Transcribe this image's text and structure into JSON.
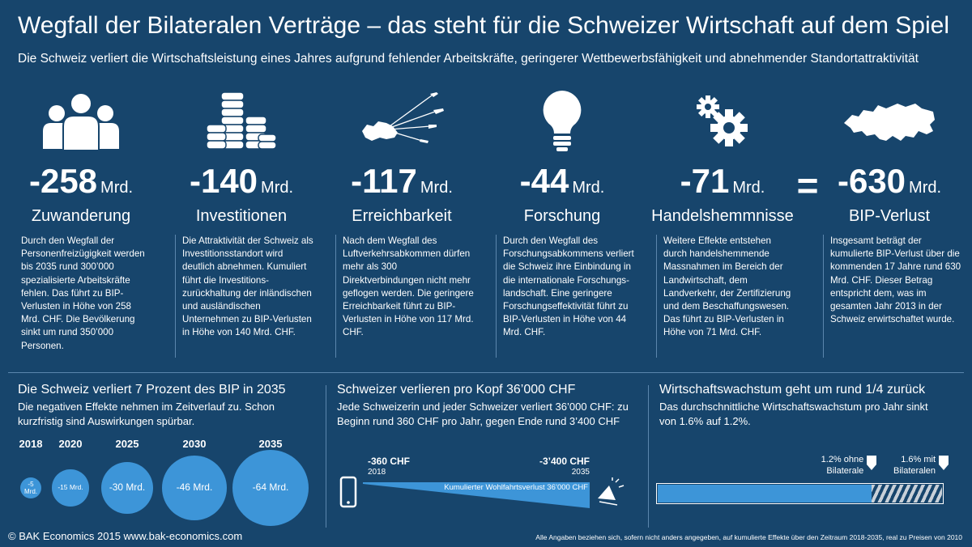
{
  "header": {
    "title": "Wegfall der Bilateralen Verträge – das steht für die Schweizer Wirtschaft auf dem Spiel",
    "subtitle": "Die Schweiz verliert die Wirtschaftsleistung eines Jahres aufgrund fehlender Arbeitskräfte, geringerer Wettbewerbsfähigkeit und abnehmender Standortattraktivität"
  },
  "columns": [
    {
      "icon": "people-icon",
      "value": "-258",
      "unit": "Mrd.",
      "label": "Zuwanderung",
      "text": "Durch den Wegfall der Personenfreizügigkeit werden bis 2035 rund 300’000 spezialisierte Arbeitskräfte fehlen. Das führt zu BIP-Verlusten in Höhe von 258 Mrd. CHF. Die Bevölkerung sinkt um rund 350’000 Personen."
    },
    {
      "icon": "coin-stacks-icon",
      "value": "-140",
      "unit": "Mrd.",
      "label": "Investitionen",
      "text": "Die Attraktivität der Schweiz als Investitionsstandort wird deutlich abnehmen. Kumuliert führt die Investitions-zurückhaltung der inländischen und ausländischen Unternehmen zu BIP-Verlusten in Höhe von 140 Mrd. CHF."
    },
    {
      "icon": "airplanes-icon",
      "value": "-117",
      "unit": "Mrd.",
      "label": "Erreichbarkeit",
      "text": "Nach dem Wegfall des Luftverkehrsabkommen dürfen mehr als 300 Direktverbindungen nicht mehr geflogen werden. Die geringere Erreichbarkeit führt zu BIP-Verlusten in Höhe von 117 Mrd. CHF."
    },
    {
      "icon": "lightbulb-icon",
      "value": "-44",
      "unit": "Mrd.",
      "label": "Forschung",
      "text": "Durch den Wegfall des Forschungsabkommens verliert die Schweiz ihre Einbindung in die internationale Forschungs-landschaft. Eine geringere Forschungseffektivität führt zu BIP-Verlusten in Höhe von 44 Mrd. CHF."
    },
    {
      "icon": "gears-icon",
      "value": "-71",
      "unit": "Mrd.",
      "label": "Handelshemmnisse",
      "text": "Weitere Effekte entstehen durch handelshemmende Massnahmen im Bereich der Landwirtschaft, dem Landverkehr, der Zertifizierung und dem Beschaffungswesen. Das führt zu BIP-Verlusten in Höhe von 71 Mrd. CHF."
    },
    {
      "icon": "switzerland-map-icon",
      "value": "-630",
      "unit": "Mrd.",
      "label": "BIP-Verlust",
      "text": "Insgesamt beträgt der kumulierte BIP-Verlust über die kommenden 17 Jahre rund 630 Mrd. CHF. Dieser Betrag entspricht dem, was im gesamten Jahr 2013 in der Schweiz erwirtschaftet wurde."
    }
  ],
  "equals_sign": "=",
  "panel_gdp": {
    "title": "Die Schweiz verliert 7 Prozent des BIP in 2035",
    "text": "Die negativen Effekte nehmen im Zeitverlauf zu. Schon kurzfristig sind Auswirkungen spürbar.",
    "bubbles": [
      {
        "year": "2018",
        "label": "-5 Mrd.",
        "value": -5
      },
      {
        "year": "2020",
        "label": "-15 Mrd.",
        "value": -15
      },
      {
        "year": "2025",
        "label": "-30 Mrd.",
        "value": -30
      },
      {
        "year": "2030",
        "label": "-46 Mrd.",
        "value": -46
      },
      {
        "year": "2035",
        "label": "-64 Mrd.",
        "value": -64
      }
    ],
    "bubble_color": "#3d95d8"
  },
  "panel_capita": {
    "title": "Schweizer verlieren pro Kopf 36’000 CHF",
    "text": "Jede Schweizerin und jeder Schweizer verliert 36’000 CHF: zu Beginn rund 360 CHF pro Jahr, gegen Ende rund 3’400 CHF",
    "start_value": "-360 CHF",
    "start_year": "2018",
    "end_value": "-3’400 CHF",
    "end_year": "2035",
    "bar_label": "Kumulierter Wohlfahrtsverlust 36’000 CHF",
    "left_icon": "smartphone-icon",
    "right_icon": "party-hat-icon"
  },
  "panel_growth": {
    "title": "Wirtschaftswachstum geht um rund 1/4 zurück",
    "text": "Das durchschnittliche Wirtschaftswachstum pro Jahr sinkt von 1.6% auf 1.2%.",
    "marker_without": "1.2% ohne Bilaterale",
    "marker_with": "1.6% mit Bilateralen",
    "value_without": 1.2,
    "value_with": 1.6,
    "bar_color": "#3d95d8"
  },
  "footer": {
    "left": "© BAK Economics 2015 www.bak-economics.com",
    "right": "Alle Angaben beziehen sich, sofern nicht anders angegeben, auf kumulierte Effekte über den Zeitraum 2018-2035, real zu Preisen von 2010"
  }
}
